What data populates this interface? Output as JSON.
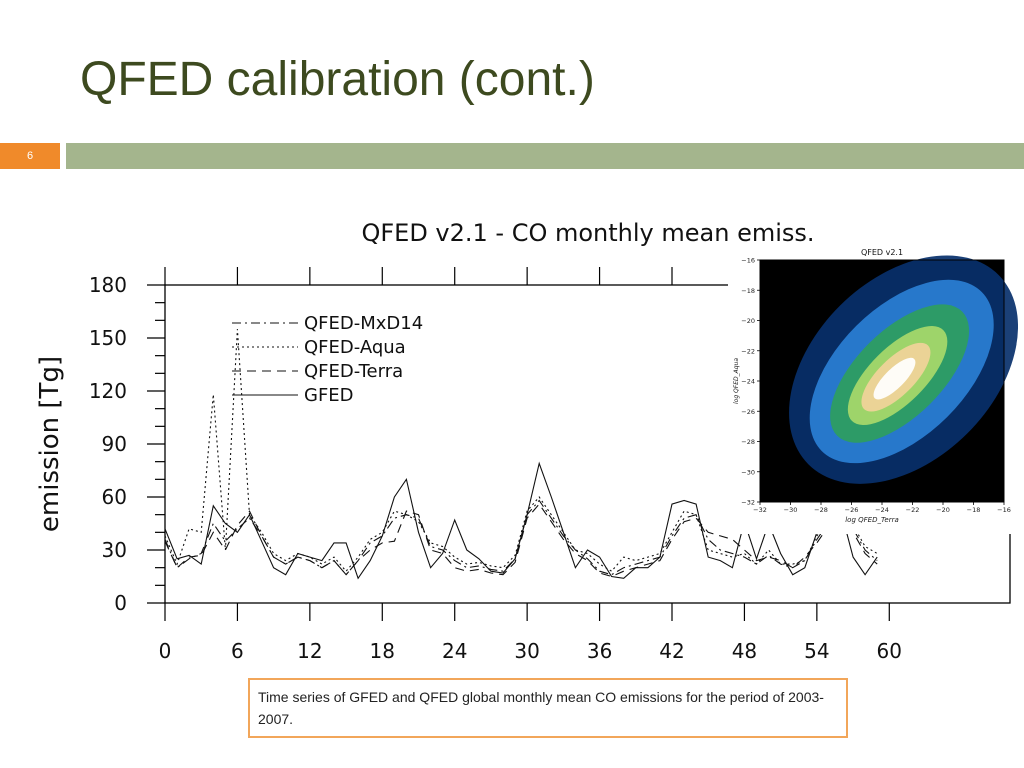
{
  "slide": {
    "title": "QFED calibration (cont.)",
    "page_number": "6",
    "caption": "Time series of GFED and QFED global monthly mean CO emissions for the period of 2003-2007."
  },
  "colors": {
    "title": "#3d4a1f",
    "badge": "#f08a2a",
    "accent_bar": "#a4b58d",
    "caption_border": "#f2a65a"
  },
  "chart_data": [
    {
      "type": "line",
      "title": "QFED v2.1 - CO monthly mean emiss.",
      "xlabel": "",
      "ylabel": "emission [Tg]",
      "xlim": [
        0,
        70
      ],
      "ylim": [
        0,
        180
      ],
      "xticks": [
        0,
        6,
        12,
        18,
        24,
        30,
        36,
        42,
        48,
        54,
        60
      ],
      "yticks": [
        0,
        30,
        60,
        90,
        120,
        150,
        180
      ],
      "grid": false,
      "legend": "top-left",
      "series": [
        {
          "name": "QFED-MxD14",
          "dash": "dashdot",
          "x": [
            0,
            1,
            2,
            3,
            4,
            5,
            6,
            7,
            8,
            9,
            10,
            11,
            12,
            13,
            14,
            15,
            16,
            17,
            18,
            19,
            20,
            21,
            22,
            23,
            24,
            25,
            26,
            27,
            28,
            29,
            30,
            31,
            32,
            33,
            34,
            35,
            36,
            37,
            38,
            39,
            40,
            41,
            42,
            43,
            44,
            45,
            46,
            47,
            48,
            49,
            50,
            51,
            52,
            53,
            54,
            55,
            56,
            57,
            58,
            59
          ],
          "y": [
            36,
            20,
            25,
            28,
            45,
            35,
            42,
            48,
            38,
            26,
            22,
            26,
            24,
            20,
            24,
            16,
            24,
            34,
            38,
            48,
            50,
            48,
            32,
            30,
            24,
            20,
            21,
            19,
            18,
            25,
            50,
            58,
            48,
            38,
            30,
            25,
            18,
            16,
            20,
            22,
            24,
            26,
            38,
            48,
            50,
            36,
            30,
            28,
            26,
            22,
            27,
            22,
            20,
            24,
            36,
            46,
            50,
            42,
            30,
            24
          ]
        },
        {
          "name": "QFED-Aqua",
          "dash": "dotted",
          "x": [
            0,
            1,
            2,
            3,
            4,
            5,
            6,
            7,
            8,
            9,
            10,
            11,
            12,
            13,
            14,
            15,
            16,
            17,
            18,
            19,
            20,
            21,
            22,
            23,
            24,
            25,
            26,
            27,
            28,
            29,
            30,
            31,
            32,
            33,
            34,
            35,
            36,
            37,
            38,
            39,
            40,
            41,
            42,
            43,
            44,
            45,
            46,
            47,
            48,
            49,
            50,
            51,
            52,
            53,
            54,
            55,
            56,
            57,
            58,
            59
          ],
          "y": [
            38,
            22,
            42,
            40,
            118,
            30,
            155,
            50,
            40,
            28,
            24,
            28,
            26,
            22,
            26,
            18,
            26,
            36,
            40,
            52,
            50,
            46,
            34,
            32,
            26,
            22,
            23,
            21,
            20,
            27,
            52,
            60,
            50,
            40,
            30,
            28,
            22,
            18,
            26,
            24,
            26,
            28,
            40,
            52,
            50,
            30,
            28,
            26,
            28,
            22,
            30,
            22,
            22,
            24,
            38,
            48,
            52,
            44,
            32,
            28
          ]
        },
        {
          "name": "QFED-Terra",
          "dash": "dashed",
          "x": [
            0,
            1,
            2,
            3,
            4,
            5,
            6,
            7,
            8,
            9,
            10,
            11,
            12,
            13,
            14,
            15,
            16,
            17,
            18,
            19,
            20,
            21,
            22,
            23,
            24,
            25,
            26,
            27,
            28,
            29,
            30,
            31,
            32,
            33,
            34,
            35,
            36,
            37,
            38,
            39,
            40,
            41,
            42,
            43,
            44,
            45,
            46,
            47,
            48,
            49,
            50,
            51,
            52,
            53,
            54,
            55,
            56,
            57,
            58,
            59
          ],
          "y": [
            35,
            20,
            26,
            27,
            40,
            30,
            44,
            52,
            38,
            26,
            22,
            26,
            24,
            20,
            24,
            16,
            24,
            30,
            34,
            35,
            52,
            50,
            30,
            28,
            20,
            18,
            19,
            17,
            16,
            23,
            48,
            56,
            46,
            36,
            28,
            24,
            17,
            15,
            18,
            20,
            22,
            24,
            36,
            46,
            48,
            40,
            38,
            36,
            30,
            24,
            26,
            24,
            20,
            26,
            34,
            44,
            48,
            40,
            28,
            22
          ]
        },
        {
          "name": "GFED",
          "dash": "solid",
          "x": [
            0,
            1,
            2,
            3,
            4,
            5,
            6,
            7,
            8,
            9,
            10,
            11,
            12,
            13,
            14,
            15,
            16,
            17,
            18,
            19,
            20,
            21,
            22,
            23,
            24,
            25,
            26,
            27,
            28,
            29,
            30,
            31,
            32,
            33,
            34,
            35,
            36,
            37,
            38,
            39,
            40,
            41,
            42,
            43,
            44,
            45,
            46,
            47,
            48,
            49,
            50,
            51,
            52,
            53,
            54,
            55,
            56,
            57,
            58,
            59
          ],
          "y": [
            42,
            25,
            27,
            22,
            55,
            45,
            40,
            50,
            35,
            20,
            16,
            28,
            26,
            24,
            34,
            34,
            14,
            24,
            38,
            60,
            70,
            40,
            20,
            28,
            47,
            30,
            25,
            18,
            17,
            25,
            50,
            79,
            60,
            40,
            20,
            30,
            26,
            15,
            14,
            20,
            20,
            26,
            56,
            58,
            56,
            26,
            24,
            20,
            46,
            25,
            45,
            28,
            16,
            20,
            40,
            46,
            52,
            26,
            16,
            26
          ]
        }
      ]
    },
    {
      "type": "heatmap",
      "title": "QFED v2.1",
      "xlabel": "log QFED_Terra",
      "ylabel": "log QFED_Aqua",
      "xlim": [
        -32,
        -16
      ],
      "ylim": [
        -32,
        -16
      ],
      "xticks": [
        -32,
        -30,
        -28,
        -26,
        -24,
        -22,
        -20,
        -18,
        -16
      ],
      "yticks": [
        -32,
        -30,
        -28,
        -26,
        -24,
        -22,
        -20,
        -18,
        -16
      ],
      "colormap": [
        "#000000",
        "#08306b",
        "#2a7fd4",
        "#2e9e5e",
        "#a8d96a",
        "#f2d39a",
        "#ffffff"
      ],
      "density_ridge": {
        "x": [
          -28,
          -26,
          -24,
          -22,
          -20,
          -18
        ],
        "y": [
          -28,
          -26,
          -24,
          -22,
          -20,
          -18
        ]
      }
    }
  ]
}
